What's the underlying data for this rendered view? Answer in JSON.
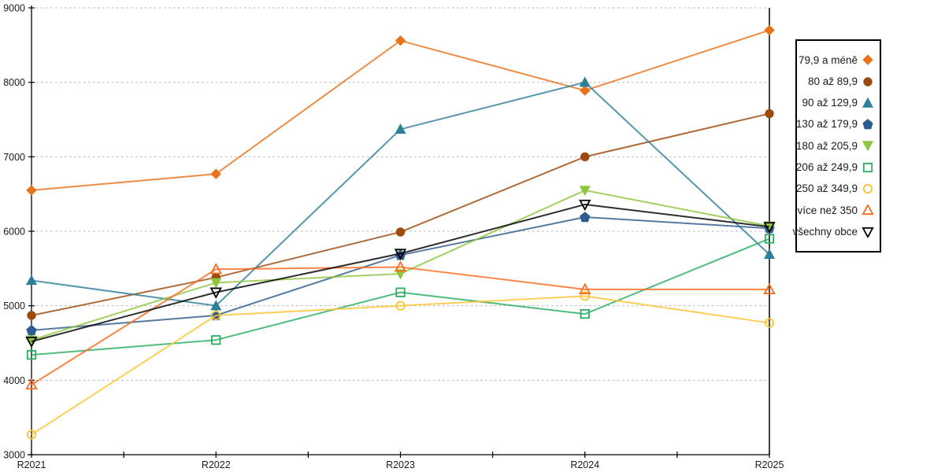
{
  "chart_data": {
    "type": "line",
    "title": "",
    "xlabel": "",
    "ylabel": "",
    "categories": [
      "R2021",
      "R2022",
      "R2023",
      "R2024",
      "R2025"
    ],
    "y_ticks": [
      3000,
      4000,
      5000,
      6000,
      7000,
      8000,
      9000
    ],
    "ylim": [
      3000,
      9000
    ],
    "grid": "horizontal-dashed",
    "grid_color": "#b4b4b4",
    "axis_color": "#000000",
    "legend_position": "right",
    "series": [
      {
        "name": "79,9 a méně",
        "marker": "diamond",
        "fill": "solid",
        "color": "#E8731C",
        "values": [
          6550,
          6770,
          8560,
          7890,
          8700
        ]
      },
      {
        "name": "80 až 89,9",
        "marker": "circle",
        "fill": "solid",
        "color": "#9C4A0D",
        "values": [
          4870,
          5380,
          5990,
          7000,
          7580
        ]
      },
      {
        "name": "90 až 129,9",
        "marker": "triangle-up",
        "fill": "solid",
        "color": "#2E7F99",
        "values": [
          5340,
          5000,
          7370,
          8000,
          5690
        ]
      },
      {
        "name": "130 až 179,9",
        "marker": "pentagon",
        "fill": "solid",
        "color": "#2F5C8E",
        "values": [
          4670,
          4870,
          5680,
          6190,
          6040
        ]
      },
      {
        "name": "180 až 205,9",
        "marker": "triangle-down",
        "fill": "solid",
        "color": "#8DC63F",
        "values": [
          4540,
          5310,
          5430,
          6550,
          6070
        ]
      },
      {
        "name": "206 až 249,9",
        "marker": "square",
        "fill": "open",
        "color": "#29AD60",
        "values": [
          4340,
          4540,
          5180,
          4890,
          5900
        ]
      },
      {
        "name": "250 až 349,9",
        "marker": "circle",
        "fill": "open",
        "color": "#FBC434",
        "values": [
          3270,
          4870,
          5000,
          5130,
          4770
        ]
      },
      {
        "name": "více než 350",
        "marker": "triangle-up",
        "fill": "open",
        "color": "#FB6A1F",
        "values": [
          3940,
          5490,
          5520,
          5220,
          5220
        ]
      },
      {
        "name": "všechny obce",
        "marker": "triangle-down",
        "fill": "open",
        "color": "#000000",
        "values": [
          4520,
          5180,
          5700,
          6360,
          6060
        ]
      }
    ]
  }
}
